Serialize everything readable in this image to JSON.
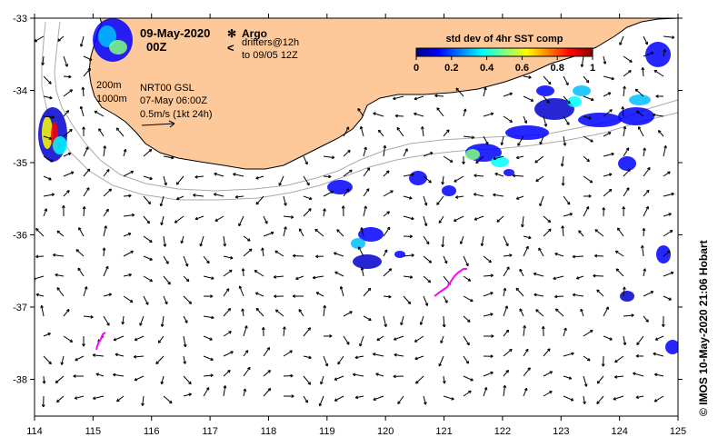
{
  "title": {
    "date": "09-May-2020",
    "hour": "00Z"
  },
  "legend_argo": {
    "symbol": "✻",
    "label": "Argo",
    "drifter_symbol": "<",
    "drifter_line1": "drifters@12h",
    "drifter_line2": "to 09/05 12Z",
    "argo_color": "#ff00ff"
  },
  "info": {
    "depth1": "200m",
    "depth2": "1000m",
    "product": "NRT00 GSL",
    "date": "07-May 06:00Z",
    "scale": "0.5m/s (1kt 24h)"
  },
  "colorbar": {
    "title": "std dev of 4hr SST comp",
    "ticks": [
      "0",
      "0.2",
      "0.4",
      "0.6",
      "0.8",
      "1"
    ],
    "colors": [
      "#00007f",
      "#0000ff",
      "#007fff",
      "#00ffff",
      "#7fff7f",
      "#ffff00",
      "#ff7f00",
      "#ff0000",
      "#7f0000"
    ]
  },
  "axes": {
    "x_ticks": [
      "114",
      "115",
      "116",
      "117",
      "118",
      "119",
      "120",
      "121",
      "122",
      "123",
      "124",
      "125"
    ],
    "y_ticks": [
      "-33",
      "-34",
      "-35",
      "-36",
      "-37",
      "-38"
    ]
  },
  "credit": "© IMOS 10-May-2020 21:06 Hobart",
  "colors": {
    "land": "#fdc99a",
    "coast": "#000000",
    "isobath": "#aaaaaa"
  }
}
